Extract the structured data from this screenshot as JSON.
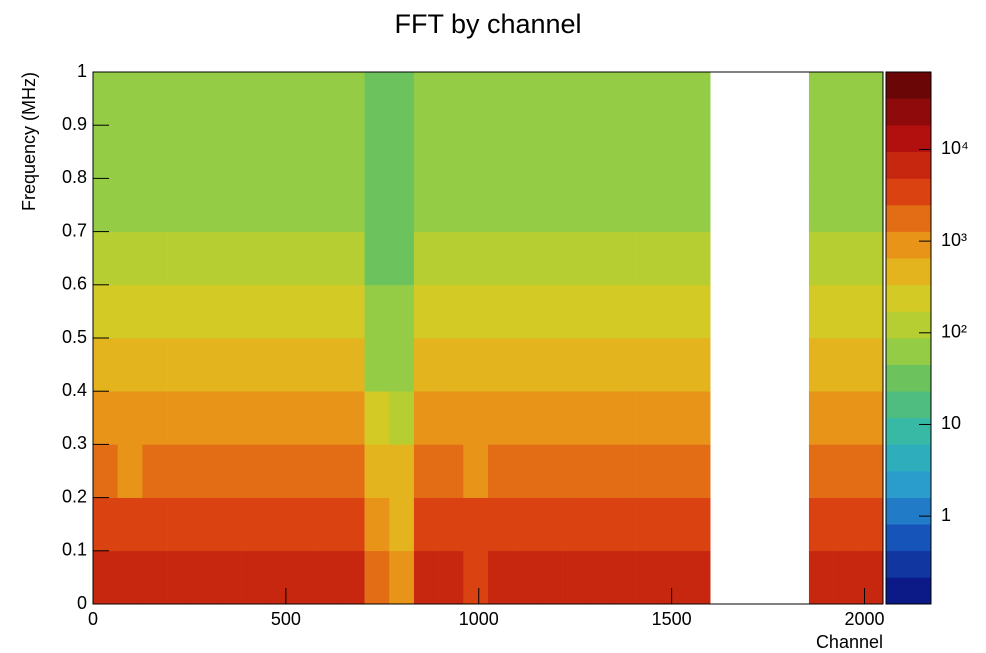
{
  "chart_data": {
    "type": "heatmap",
    "title": "FFT by channel",
    "x_label": "Channel",
    "y_label": "Frequency (MHz)",
    "xbins": [
      0,
      64,
      128,
      192,
      256,
      320,
      384,
      448,
      512,
      576,
      640,
      704,
      768,
      832,
      896,
      960,
      1024,
      1088,
      1152,
      1216,
      1280,
      1344,
      1408,
      1472,
      1536,
      1600,
      1664,
      1728,
      1792,
      1856,
      1920,
      1984,
      2048
    ],
    "ybins": [
      0,
      0.1,
      0.2,
      0.3,
      0.4,
      0.5,
      0.6,
      0.7,
      0.8,
      0.9,
      1
    ],
    "z": [
      [
        6000,
        5000,
        7000,
        5500,
        6000,
        6500,
        5000,
        7000,
        6000,
        5500,
        5000,
        1500,
        1200,
        6000,
        5000,
        4500,
        5000,
        6000,
        5500,
        5000,
        6500,
        6000,
        5500,
        5000,
        6000,
        null,
        null,
        null,
        null,
        5000,
        6000,
        5500
      ],
      [
        3000,
        2500,
        3500,
        3000,
        3200,
        3500,
        2800,
        3000,
        3300,
        2700,
        2600,
        700,
        600,
        3500,
        3000,
        2500,
        2800,
        3000,
        2600,
        2700,
        3200,
        3000,
        2800,
        2500,
        3000,
        null,
        null,
        null,
        null,
        2800,
        3200,
        3000
      ],
      [
        1500,
        1200,
        1800,
        1400,
        1600,
        2000,
        1300,
        1500,
        1700,
        1400,
        1300,
        400,
        350,
        1800,
        1500,
        1200,
        1400,
        1500,
        1300,
        1400,
        1600,
        1800,
        1500,
        1300,
        1500,
        null,
        null,
        null,
        null,
        1400,
        1600,
        1500
      ],
      [
        1000,
        800,
        1100,
        900,
        1000,
        1200,
        900,
        1000,
        1100,
        900,
        850,
        200,
        150,
        1100,
        1000,
        800,
        900,
        1000,
        850,
        900,
        1000,
        1100,
        1000,
        900,
        1000,
        null,
        null,
        null,
        null,
        900,
        1000,
        950
      ],
      [
        500,
        450,
        550,
        500,
        500,
        600,
        450,
        500,
        550,
        450,
        450,
        80,
        70,
        550,
        500,
        450,
        500,
        500,
        450,
        450,
        500,
        550,
        500,
        450,
        500,
        null,
        null,
        null,
        null,
        450,
        500,
        480
      ],
      [
        250,
        220,
        280,
        230,
        250,
        300,
        220,
        250,
        260,
        230,
        220,
        50,
        45,
        280,
        250,
        220,
        240,
        250,
        230,
        220,
        250,
        270,
        250,
        230,
        250,
        null,
        null,
        null,
        null,
        230,
        250,
        240
      ],
      [
        120,
        100,
        140,
        110,
        120,
        150,
        100,
        120,
        130,
        110,
        100,
        35,
        30,
        140,
        120,
        100,
        110,
        120,
        110,
        100,
        120,
        130,
        120,
        110,
        120,
        null,
        null,
        null,
        null,
        110,
        120,
        115
      ],
      [
        70,
        60,
        80,
        65,
        70,
        80,
        60,
        70,
        75,
        65,
        60,
        30,
        28,
        80,
        70,
        60,
        65,
        70,
        65,
        60,
        70,
        75,
        70,
        65,
        70,
        null,
        null,
        null,
        null,
        65,
        70,
        68
      ],
      [
        55,
        50,
        60,
        52,
        55,
        60,
        50,
        55,
        58,
        52,
        50,
        28,
        25,
        60,
        55,
        50,
        52,
        55,
        52,
        50,
        55,
        58,
        55,
        52,
        55,
        null,
        null,
        null,
        null,
        52,
        55,
        53
      ],
      [
        60,
        55,
        65,
        58,
        60,
        65,
        55,
        60,
        62,
        58,
        55,
        30,
        28,
        65,
        60,
        55,
        58,
        60,
        58,
        55,
        60,
        62,
        60,
        58,
        60,
        null,
        null,
        null,
        null,
        58,
        60,
        58
      ]
    ],
    "xlim": [
      0,
      2048
    ],
    "xticks": [
      0,
      500,
      1000,
      1500,
      2000
    ],
    "ylim": [
      0,
      1
    ],
    "yticks": [
      0,
      0.1,
      0.2,
      0.3,
      0.4,
      0.5,
      0.6,
      0.7,
      0.8,
      0.9,
      1
    ],
    "zlim": [
      0.11,
      70000
    ],
    "zlog": true,
    "zticks": [
      1,
      10,
      {
        "value": 100,
        "label": "10²"
      },
      {
        "value": 1000,
        "label": "10³"
      },
      {
        "value": 10000,
        "label": "10⁴"
      }
    ],
    "palette": [
      "#0b1a86",
      "#1650b8",
      "#2a9ad0",
      "#30b8b0",
      "#5cbf68",
      "#a8d038",
      "#e0c820",
      "#e88a18",
      "#d83a10",
      "#b00e0e",
      "#6a0606"
    ]
  }
}
